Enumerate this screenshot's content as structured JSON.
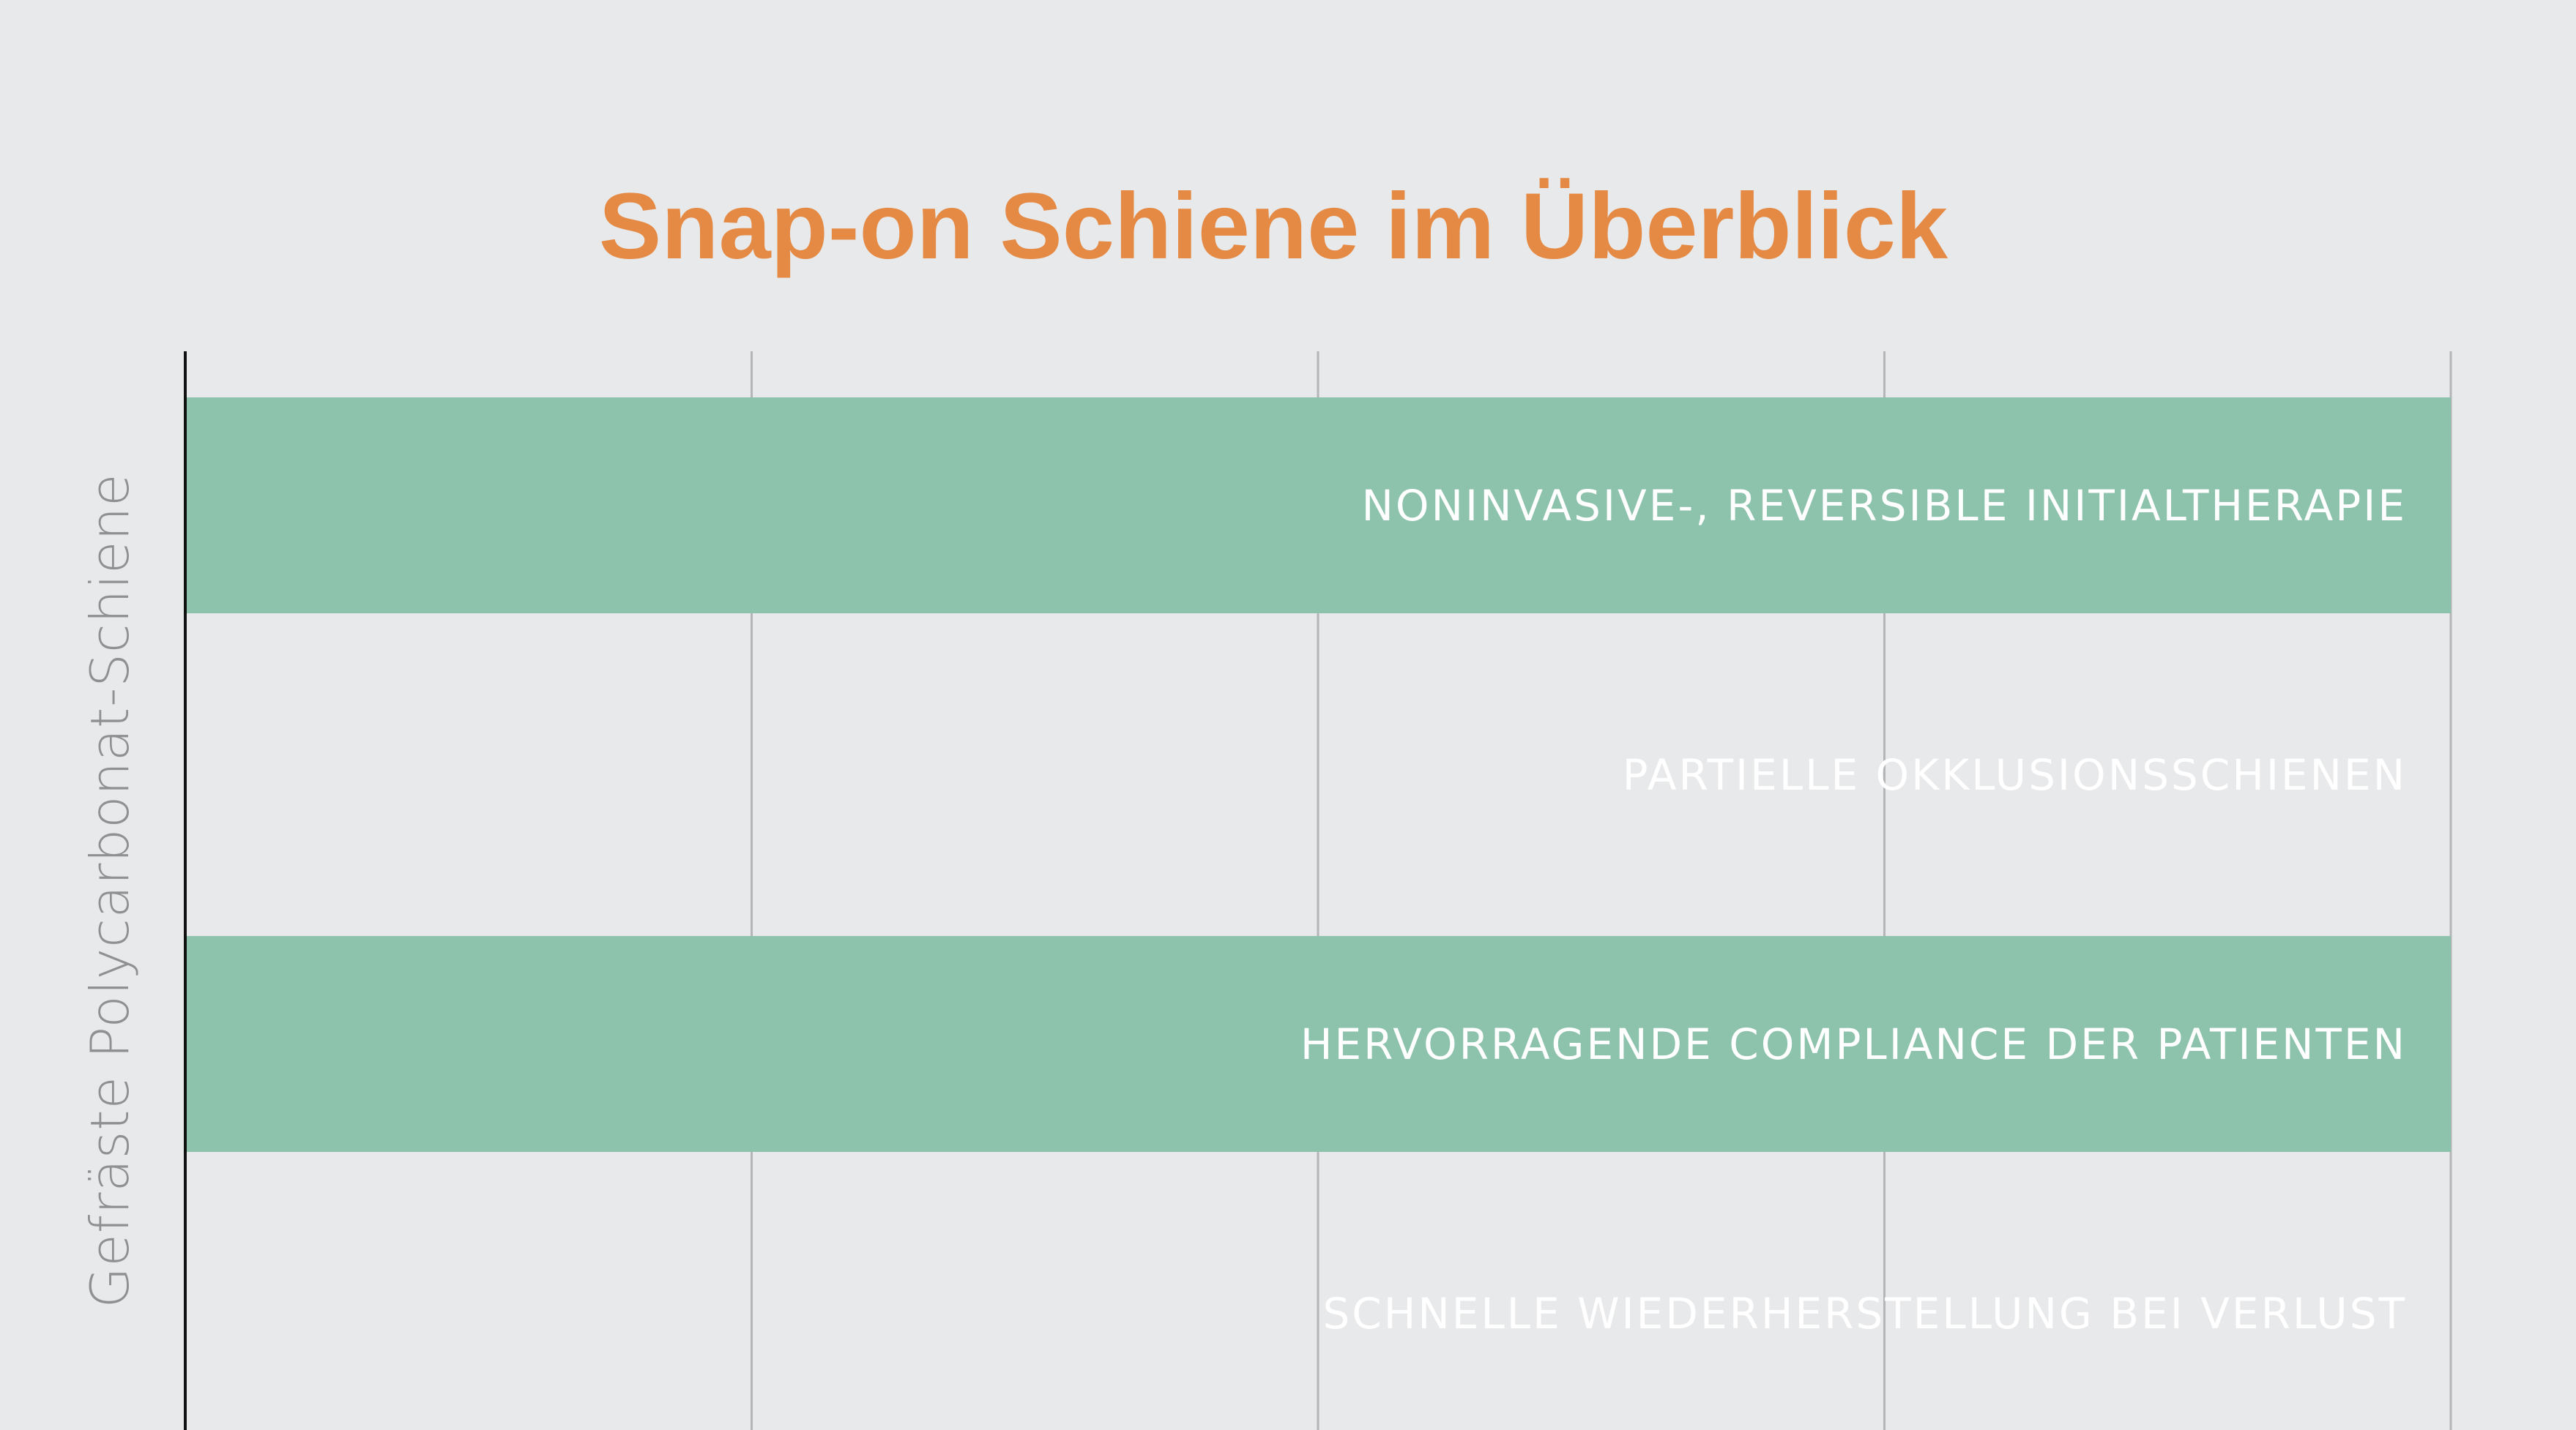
{
  "chart_data": {
    "type": "bar",
    "orientation": "horizontal",
    "title": "Snap-on Schiene im Überblick",
    "ylabel": "Gefräste Polycarbonat-Schiene",
    "xlabel": "",
    "xlim": [
      0,
      4
    ],
    "grid": true,
    "categories": [
      "NONINVASIVE-, REVERSIBLE INITIALTHERAPIE",
      "PARTIELLE   OKKLUSIONSSCHIENEN",
      "HERVORRAGENDE COMPLIANCE DER PATIENTEN",
      "SCHNELLE WIEDERHERSTELLUNG BEI VERLUST"
    ],
    "values": [
      4,
      4,
      4,
      4
    ],
    "bar_filled": [
      true,
      false,
      true,
      false
    ]
  },
  "colors": {
    "background": "#e8e9ea",
    "title": "#e58a45",
    "bar": "#8dc3ad",
    "bar_label": "#ffffff",
    "axis_line": "#111111",
    "grid_line": "#b4b5b7",
    "ylabel": "#8f9092"
  }
}
